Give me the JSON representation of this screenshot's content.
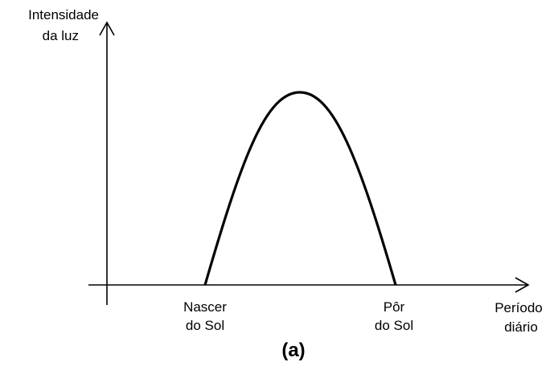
{
  "axes": {
    "y_label": [
      "Intensidade",
      "da luz"
    ],
    "x_label": [
      "Período",
      "diário"
    ]
  },
  "markers": [
    {
      "label": [
        "Nascer",
        "do Sol"
      ]
    },
    {
      "label": [
        "Pôr",
        "do Sol"
      ]
    }
  ],
  "caption": "(a)"
}
